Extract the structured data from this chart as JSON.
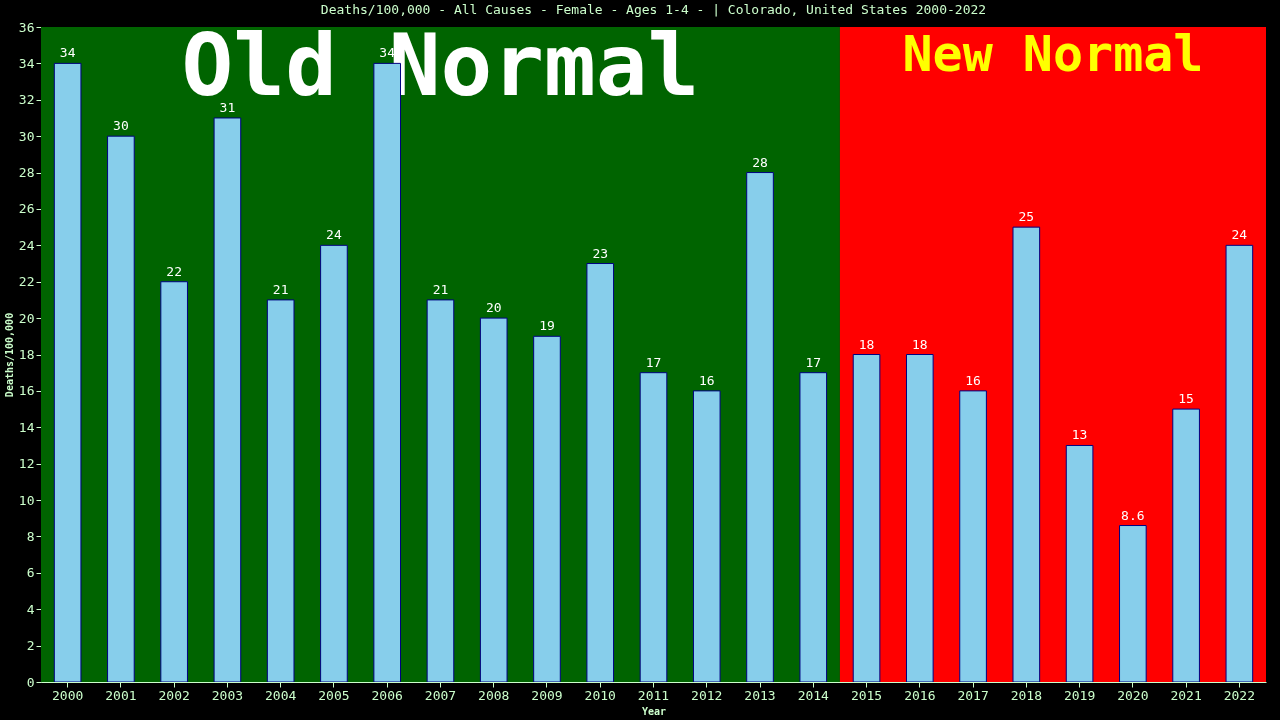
{
  "chart_data": {
    "type": "bar",
    "title": "Deaths/100,000 - All Causes - Female - Ages 1-4 -  | Colorado, United States 2000-2022",
    "xlabel": "Year",
    "ylabel": "Deaths/100,000",
    "categories": [
      "2000",
      "2001",
      "2002",
      "2003",
      "2004",
      "2005",
      "2006",
      "2007",
      "2008",
      "2009",
      "2010",
      "2011",
      "2012",
      "2013",
      "2014",
      "2015",
      "2016",
      "2017",
      "2018",
      "2019",
      "2020",
      "2021",
      "2022"
    ],
    "values": [
      34,
      30,
      22,
      31,
      21,
      24,
      34,
      21,
      20,
      19,
      23,
      17,
      16,
      28,
      17,
      18,
      18,
      16,
      25,
      13,
      8.6,
      15,
      24
    ],
    "color": "#87ceeb",
    "ylim": [
      0,
      36
    ],
    "yticks": [
      0,
      2,
      4,
      6,
      8,
      10,
      12,
      14,
      16,
      18,
      20,
      22,
      24,
      26,
      28,
      30,
      32,
      34,
      36
    ],
    "bands": [
      {
        "axis": "x",
        "from": "2000",
        "to": "2014",
        "label": "Old Normal",
        "color": "#006400"
      },
      {
        "axis": "x",
        "from": "2015",
        "to": "2022",
        "label": "New Normal",
        "color": "#ff0000"
      }
    ],
    "data_labels": true,
    "grid": false
  }
}
